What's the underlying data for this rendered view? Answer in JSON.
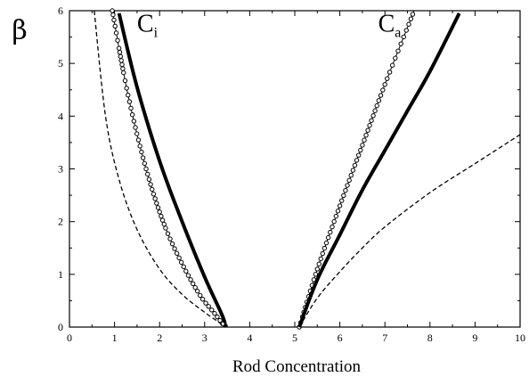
{
  "chart_data": {
    "type": "line",
    "xlabel": "Rod Concentration",
    "ylabel": "β",
    "xlim": [
      0,
      10
    ],
    "ylim": [
      0,
      6
    ],
    "x_ticks": [
      "0",
      "1",
      "2",
      "3",
      "4",
      "5",
      "6",
      "7",
      "8",
      "9",
      "10"
    ],
    "y_ticks": [
      "0",
      "1",
      "2",
      "3",
      "4",
      "5",
      "6"
    ],
    "grid": false,
    "legend": "none",
    "annotations": [
      {
        "main": "C",
        "sub": "i",
        "x": 1.5,
        "y": 5.6
      },
      {
        "main": "C",
        "sub": "a",
        "x": 6.85,
        "y": 5.6
      }
    ],
    "series": [
      {
        "style": "thick-solid",
        "color": "#000000",
        "x": [
          1.1,
          1.5,
          2.0,
          2.5,
          3.0,
          3.4,
          3.45
        ],
        "y": [
          5.95,
          4.55,
          3.15,
          2.0,
          0.95,
          0.2,
          0.0
        ]
      },
      {
        "style": "open-circles",
        "color": "#000000",
        "x": [
          0.95,
          1.3,
          1.7,
          2.1,
          2.5,
          2.9,
          3.2,
          3.4,
          3.45
        ],
        "y": [
          6.0,
          4.4,
          3.0,
          1.95,
          1.2,
          0.6,
          0.28,
          0.06,
          0.0
        ]
      },
      {
        "style": "dashed",
        "color": "#000000",
        "x": [
          0.55,
          0.8,
          1.1,
          1.5,
          2.0,
          2.5,
          3.0,
          3.3,
          3.45
        ],
        "y": [
          6.0,
          4.0,
          2.8,
          1.85,
          1.1,
          0.62,
          0.28,
          0.1,
          0.0
        ]
      },
      {
        "style": "open-circles",
        "color": "#000000",
        "x": [
          5.1,
          5.5,
          6.0,
          6.5,
          7.0,
          7.65
        ],
        "y": [
          0.0,
          1.1,
          2.3,
          3.45,
          4.6,
          6.0
        ]
      },
      {
        "style": "thick-solid",
        "color": "#000000",
        "x": [
          5.1,
          5.5,
          6.0,
          6.5,
          7.0,
          7.5,
          8.0,
          8.65
        ],
        "y": [
          0.0,
          0.9,
          1.75,
          2.6,
          3.35,
          4.1,
          4.85,
          5.95
        ]
      },
      {
        "style": "dashed",
        "color": "#000000",
        "x": [
          5.1,
          5.5,
          6.0,
          6.5,
          7.0,
          8.0,
          9.0,
          10.0
        ],
        "y": [
          0.0,
          0.55,
          1.05,
          1.5,
          1.9,
          2.55,
          3.1,
          3.65
        ]
      }
    ]
  }
}
